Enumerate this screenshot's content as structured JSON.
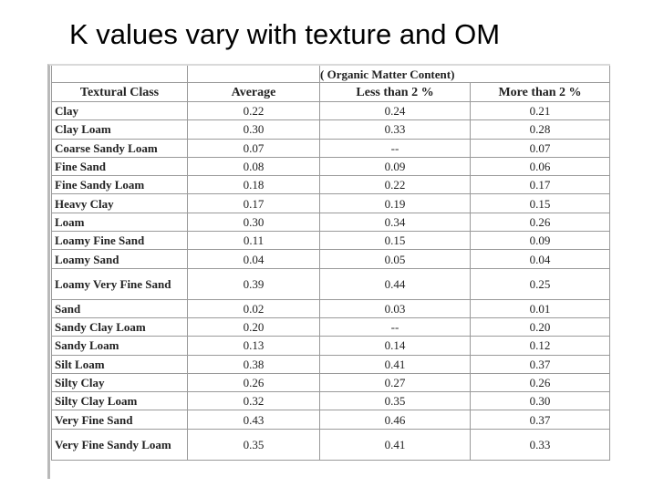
{
  "slide": {
    "title": "K values vary with texture and OM"
  },
  "table": {
    "group_header": "( Organic Matter Content)",
    "columns": [
      "Textural Class",
      "Average",
      "Less than 2 %",
      "More than 2 %"
    ],
    "rows": [
      [
        "Clay",
        "0.22",
        "0.24",
        "0.21"
      ],
      [
        "Clay Loam",
        "0.30",
        "0.33",
        "0.28"
      ],
      [
        "Coarse Sandy Loam",
        "0.07",
        "--",
        "0.07"
      ],
      [
        "Fine Sand",
        "0.08",
        "0.09",
        "0.06"
      ],
      [
        "Fine Sandy Loam",
        "0.18",
        "0.22",
        "0.17"
      ],
      [
        "Heavy Clay",
        "0.17",
        "0.19",
        "0.15"
      ],
      [
        "Loam",
        "0.30",
        "0.34",
        "0.26"
      ],
      [
        "Loamy Fine Sand",
        "0.11",
        "0.15",
        "0.09"
      ],
      [
        "Loamy Sand",
        "0.04",
        "0.05",
        "0.04"
      ],
      [
        "Loamy Very Fine Sand",
        "0.39",
        "0.44",
        "0.25"
      ],
      [
        "Sand",
        "0.02",
        "0.03",
        "0.01"
      ],
      [
        "Sandy Clay Loam",
        "0.20",
        "--",
        "0.20"
      ],
      [
        "Sandy Loam",
        "0.13",
        "0.14",
        "0.12"
      ],
      [
        "Silt Loam",
        "0.38",
        "0.41",
        "0.37"
      ],
      [
        "Silty Clay",
        "0.26",
        "0.27",
        "0.26"
      ],
      [
        "Silty Clay Loam",
        "0.32",
        "0.35",
        "0.30"
      ],
      [
        "Very Fine Sand",
        "0.43",
        "0.46",
        "0.37"
      ],
      [
        "Very Fine Sandy Loam",
        "0.35",
        "0.41",
        "0.33"
      ]
    ]
  }
}
